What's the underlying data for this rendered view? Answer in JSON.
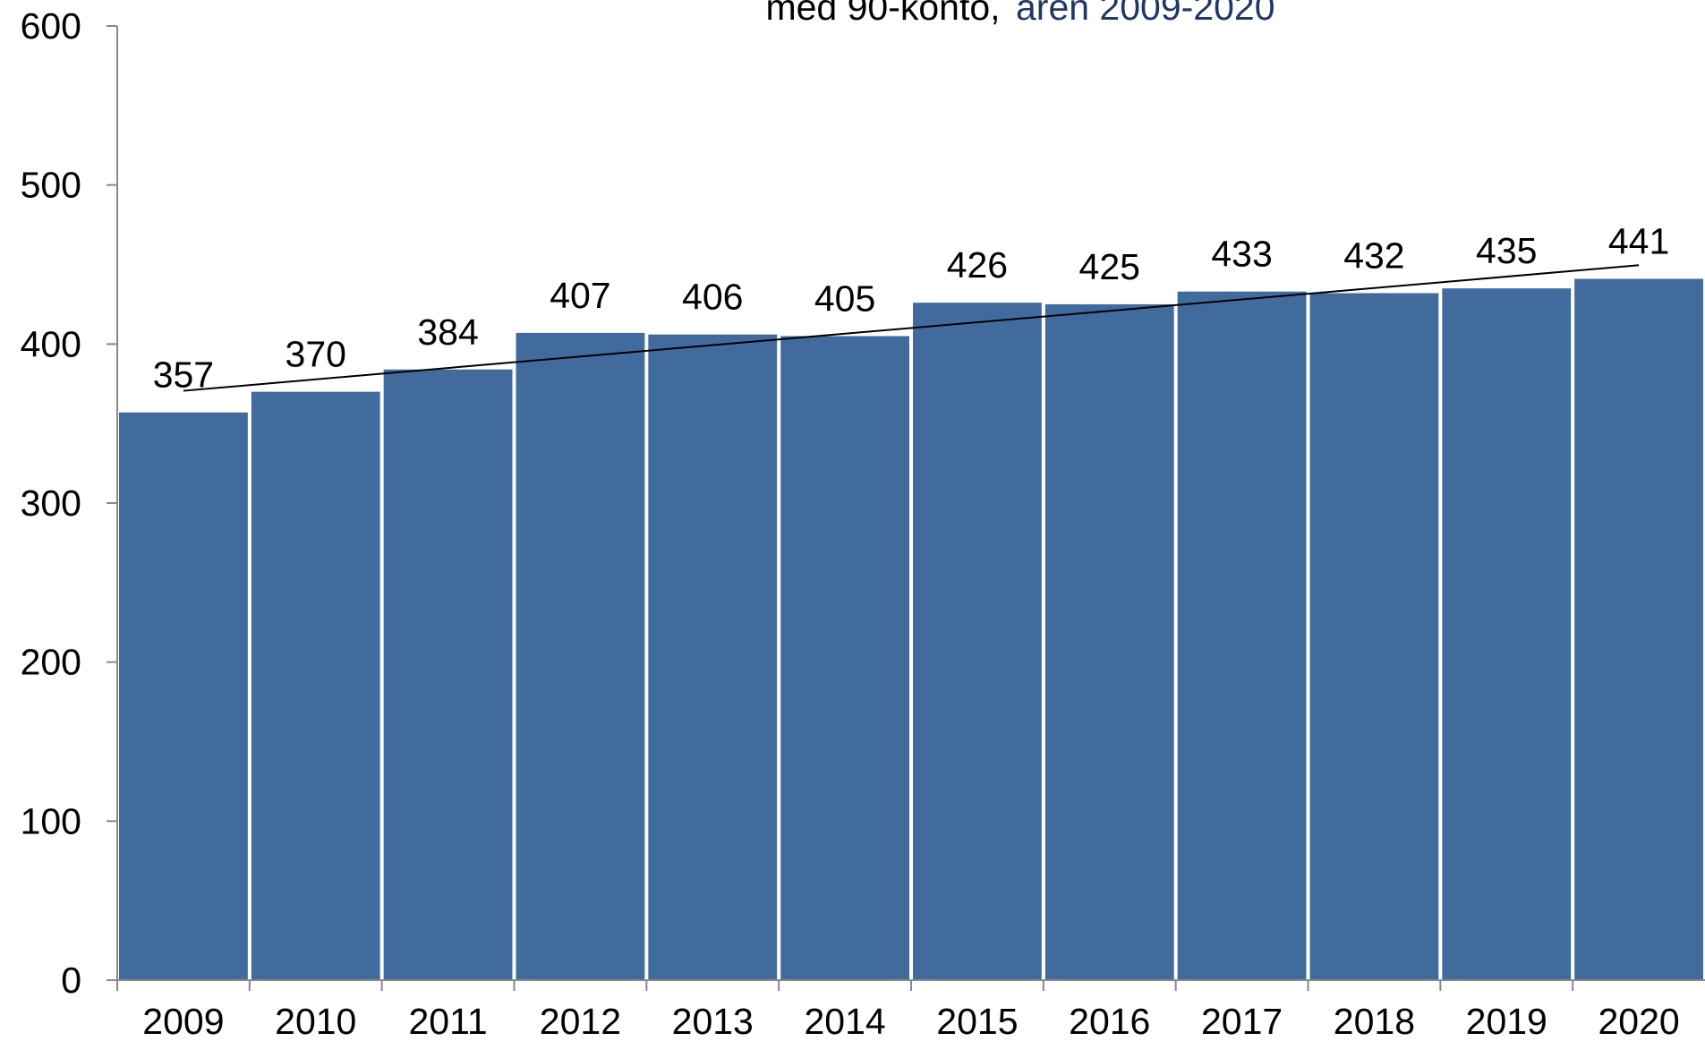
{
  "chart_data": {
    "type": "bar",
    "title_parts": [
      "med 90-konto,",
      "åren 2009-2020"
    ],
    "title_colors": [
      "#000000",
      "#1f3864"
    ],
    "categories": [
      "2009",
      "2010",
      "2011",
      "2012",
      "2013",
      "2014",
      "2015",
      "2016",
      "2017",
      "2018",
      "2019",
      "2020"
    ],
    "values": [
      357,
      370,
      384,
      407,
      406,
      405,
      426,
      425,
      433,
      432,
      435,
      441
    ],
    "color": "#426b9d",
    "trendline": true,
    "ylim": [
      0,
      600
    ],
    "yticks": [
      0,
      100,
      200,
      300,
      400,
      500,
      600
    ],
    "grid": false
  }
}
